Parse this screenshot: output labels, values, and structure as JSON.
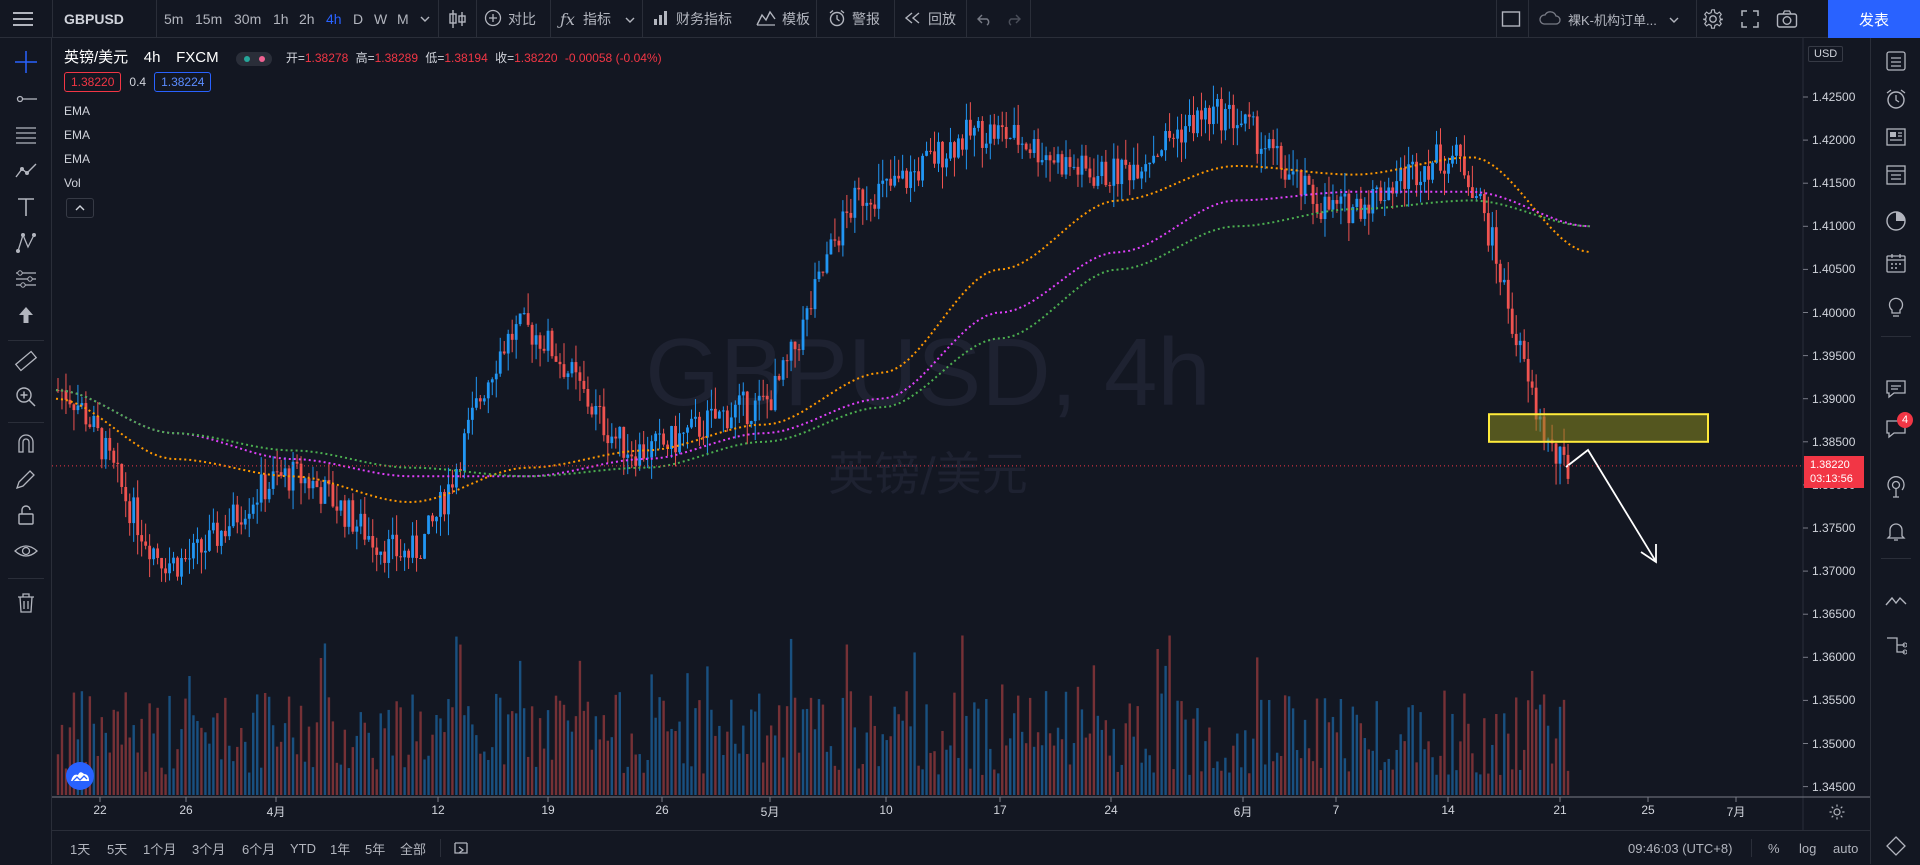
{
  "toolbar": {
    "symbol": "GBPUSD",
    "intervals": [
      "5m",
      "15m",
      "30m",
      "1h",
      "2h",
      "4h",
      "D",
      "W",
      "M"
    ],
    "active_interval": "4h",
    "compare": "对比",
    "indicators": "指标",
    "financials": "财务指标",
    "templates": "模板",
    "alert": "警报",
    "replay": "回放",
    "layout_name": "裸K-机构订单...",
    "publish": "发表"
  },
  "legend": {
    "title": "英镑/美元",
    "interval": "4h",
    "exchange": "FXCM",
    "open_label": "开=",
    "open": "1.38278",
    "high_label": "高=",
    "high": "1.38289",
    "low_label": "低=",
    "low": "1.38194",
    "close_label": "收=",
    "close": "1.38220",
    "change": "-0.00058 (-0.04%)",
    "bid": "1.38220",
    "spread": "0.4",
    "ask": "1.38224",
    "indicators": [
      "EMA",
      "EMA",
      "EMA",
      "Vol"
    ]
  },
  "watermark": {
    "line1": "GBPUSD, 4h",
    "line2": "英镑/美元"
  },
  "price_axis": {
    "currency": "USD",
    "labels": [
      "1.42500",
      "1.42000",
      "1.41500",
      "1.41000",
      "1.40500",
      "1.40000",
      "1.39500",
      "1.39000",
      "1.38500",
      "1.38000",
      "1.37500",
      "1.37000",
      "1.36500",
      "1.36000",
      "1.35500",
      "1.35000",
      "1.34500"
    ],
    "current_price": "1.38220",
    "countdown": "03:13:56"
  },
  "time_axis": [
    "22",
    "26",
    "4月",
    "12",
    "19",
    "26",
    "5月",
    "10",
    "17",
    "24",
    "6月",
    "7",
    "14",
    "21",
    "25",
    "7月"
  ],
  "footer": {
    "ranges": [
      "1天",
      "5天",
      "1个月",
      "3个月",
      "6个月",
      "YTD",
      "1年",
      "5年",
      "全部"
    ],
    "clock": "09:46:03 (UTC+8)",
    "percent": "%",
    "log": "log",
    "auto": "auto"
  },
  "badges": {
    "notifications": "4"
  },
  "colors": {
    "up": "#2196f3",
    "down": "#ef5350",
    "accent": "#2962ff",
    "ema_fast": "#ff9800",
    "ema_mid": "#e040fb",
    "ema_slow": "#4caf50",
    "zone": "#ffeb3b"
  },
  "chart_data": {
    "type": "line",
    "ylim": [
      1.3445,
      1.4275
    ],
    "x": [
      "22",
      "26",
      "4月",
      "12",
      "19",
      "26",
      "5月",
      "10",
      "17",
      "24",
      "6月",
      "7",
      "14",
      "21"
    ],
    "series": [
      {
        "values": [
          1.391,
          1.371,
          1.381,
          1.372,
          1.398,
          1.384,
          1.389,
          1.414,
          1.421,
          1.416,
          1.423,
          1.412,
          1.418,
          1.382
        ]
      },
      {
        "values": [
          1.39,
          1.383,
          1.381,
          1.378,
          1.382,
          1.384,
          1.387,
          1.393,
          1.405,
          1.413,
          1.417,
          1.416,
          1.418,
          1.407
        ]
      },
      {
        "values": [
          1.391,
          1.386,
          1.383,
          1.381,
          1.381,
          1.383,
          1.386,
          1.39,
          1.4,
          1.407,
          1.413,
          1.414,
          1.414,
          1.41
        ]
      },
      {
        "values": [
          1.391,
          1.386,
          1.384,
          1.382,
          1.381,
          1.382,
          1.385,
          1.389,
          1.397,
          1.405,
          1.41,
          1.412,
          1.413,
          1.41
        ]
      }
    ],
    "zone": [
      1.385,
      1.3882
    ]
  }
}
